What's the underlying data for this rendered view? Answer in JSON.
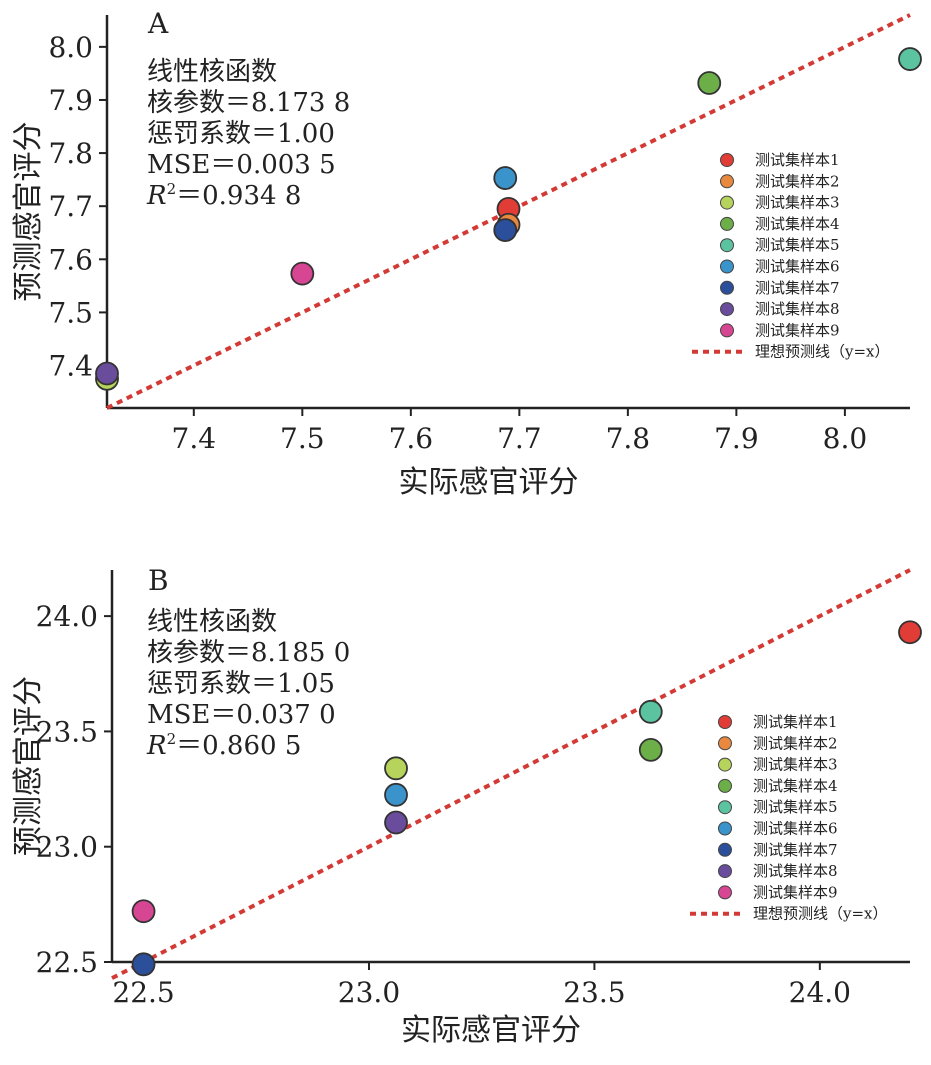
{
  "chart_data": [
    {
      "type": "scatter",
      "panel_label": "A",
      "xlabel": "实际感官评分",
      "ylabel": "预测感官评分",
      "xlim": [
        7.32,
        8.06
      ],
      "ylim": [
        7.32,
        8.06
      ],
      "xticks": [
        "7.4",
        "7.5",
        "7.6",
        "7.7",
        "7.8",
        "7.9",
        "8.0"
      ],
      "yticks": [
        "7.4",
        "7.5",
        "7.6",
        "7.7",
        "7.8",
        "7.9",
        "8.0"
      ],
      "stats": [
        "线性核函数",
        "核参数＝8.173 8",
        "惩罚系数＝1.00",
        "MSE＝0.003 5"
      ],
      "r2_symbol": "R",
      "r2_exp": "2",
      "r2_text": "＝0.934 8",
      "ideal_line": {
        "label": "理想预测线（y=x）",
        "x": [
          7.32,
          8.06
        ],
        "y": [
          7.32,
          8.06
        ]
      },
      "series": [
        {
          "name": "测试集样本1",
          "x": [
            7.69
          ],
          "y": [
            7.695
          ]
        },
        {
          "name": "测试集样本2",
          "x": [
            7.69
          ],
          "y": [
            7.665
          ]
        },
        {
          "name": "测试集样本3",
          "x": [
            7.32
          ],
          "y": [
            7.375
          ]
        },
        {
          "name": "测试集样本4",
          "x": [
            7.875
          ],
          "y": [
            7.932
          ]
        },
        {
          "name": "测试集样本5",
          "x": [
            8.06
          ],
          "y": [
            7.977
          ]
        },
        {
          "name": "测试集样本6",
          "x": [
            7.687
          ],
          "y": [
            7.753
          ]
        },
        {
          "name": "测试集样本7",
          "x": [
            7.687
          ],
          "y": [
            7.655
          ]
        },
        {
          "name": "测试集样本8",
          "x": [
            7.32
          ],
          "y": [
            7.385
          ]
        },
        {
          "name": "测试集样本9",
          "x": [
            7.5
          ],
          "y": [
            7.573
          ]
        }
      ],
      "legend_position": "right"
    },
    {
      "type": "scatter",
      "panel_label": "B",
      "xlabel": "实际感官评分",
      "ylabel": "预测感官评分",
      "xlim": [
        22.43,
        24.2
      ],
      "ylim": [
        22.5,
        24.2
      ],
      "xticks": [
        "22.5",
        "23.0",
        "23.5",
        "24.0"
      ],
      "yticks": [
        "22.5",
        "23.0",
        "23.5",
        "24.0"
      ],
      "stats": [
        "线性核函数",
        "核参数＝8.185 0",
        "惩罚系数＝1.05",
        "MSE＝0.037 0"
      ],
      "r2_symbol": "R",
      "r2_exp": "2",
      "r2_text": "＝0.860 5",
      "ideal_line": {
        "label": "理想预测线（y=x）",
        "x": [
          22.43,
          24.2
        ],
        "y": [
          22.43,
          24.2
        ]
      },
      "series": [
        {
          "name": "测试集样本1",
          "x": [
            24.2
          ],
          "y": [
            23.93
          ]
        },
        {
          "name": "测试集样本2",
          "x": [],
          "y": []
        },
        {
          "name": "测试集样本3",
          "x": [
            23.06
          ],
          "y": [
            23.34
          ]
        },
        {
          "name": "测试集样本4",
          "x": [
            23.625
          ],
          "y": [
            23.42
          ]
        },
        {
          "name": "测试集样本5",
          "x": [
            23.625
          ],
          "y": [
            23.585
          ]
        },
        {
          "name": "测试集样本6",
          "x": [
            23.06
          ],
          "y": [
            23.225
          ]
        },
        {
          "name": "测试集样本7",
          "x": [
            22.5
          ],
          "y": [
            22.49
          ]
        },
        {
          "name": "测试集样本8",
          "x": [
            23.06
          ],
          "y": [
            23.105
          ]
        },
        {
          "name": "测试集样本9",
          "x": [
            22.5
          ],
          "y": [
            22.72
          ]
        }
      ],
      "legend_position": "right"
    }
  ],
  "colors": {
    "series": [
      "#e23c37",
      "#e8893f",
      "#b6d35c",
      "#6cae47",
      "#5cc3a0",
      "#3a93cb",
      "#2b4f9a",
      "#6a4c9c",
      "#d74692"
    ],
    "ideal_line": "#d33a35",
    "axis": "#222222"
  }
}
